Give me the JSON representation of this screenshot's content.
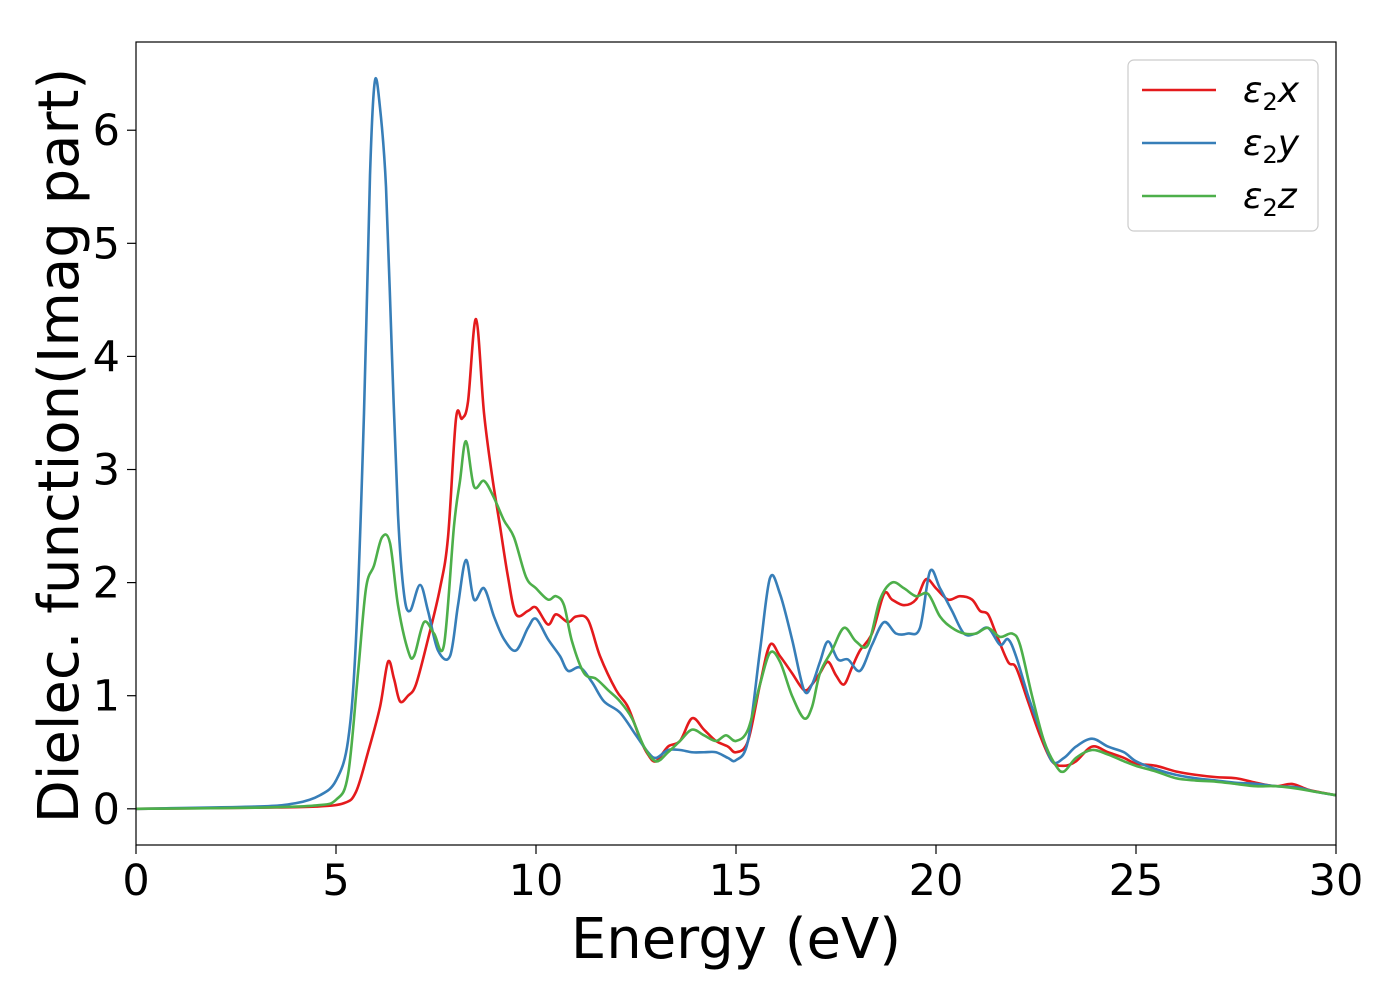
{
  "chart_data": {
    "type": "line",
    "xlabel": "Energy (eV)",
    "ylabel": "Dielec. function(Imag part)",
    "xlim": [
      0,
      30
    ],
    "ylim": [
      -0.32,
      6.78
    ],
    "xticks": [
      0,
      5,
      10,
      15,
      20,
      25,
      30
    ],
    "yticks": [
      0,
      1,
      2,
      3,
      4,
      5,
      6
    ],
    "xtick_labels": [
      "0",
      "5",
      "10",
      "15",
      "20",
      "25",
      "30"
    ],
    "ytick_labels": [
      "0",
      "1",
      "2",
      "3",
      "4",
      "5",
      "6"
    ],
    "grid": false,
    "legend_position": "top-right",
    "series": [
      {
        "name": "ε₂x",
        "legend_base": "ε",
        "legend_sub": "2",
        "legend_suffix": "x",
        "color": "#e41a1c",
        "points": [
          [
            0,
            0
          ],
          [
            3,
            0.01
          ],
          [
            4.5,
            0.02
          ],
          [
            5.2,
            0.05
          ],
          [
            5.5,
            0.15
          ],
          [
            5.8,
            0.5
          ],
          [
            6.1,
            0.9
          ],
          [
            6.3,
            1.3
          ],
          [
            6.45,
            1.15
          ],
          [
            6.6,
            0.95
          ],
          [
            6.8,
            1.0
          ],
          [
            7.0,
            1.1
          ],
          [
            7.3,
            1.5
          ],
          [
            7.6,
            1.95
          ],
          [
            7.8,
            2.4
          ],
          [
            8.0,
            3.45
          ],
          [
            8.15,
            3.45
          ],
          [
            8.3,
            3.6
          ],
          [
            8.5,
            4.33
          ],
          [
            8.7,
            3.5
          ],
          [
            8.9,
            2.95
          ],
          [
            9.1,
            2.5
          ],
          [
            9.3,
            2.05
          ],
          [
            9.5,
            1.72
          ],
          [
            9.8,
            1.75
          ],
          [
            10.0,
            1.78
          ],
          [
            10.3,
            1.63
          ],
          [
            10.5,
            1.72
          ],
          [
            10.8,
            1.65
          ],
          [
            11.0,
            1.7
          ],
          [
            11.3,
            1.67
          ],
          [
            11.6,
            1.35
          ],
          [
            12.0,
            1.05
          ],
          [
            12.3,
            0.9
          ],
          [
            12.6,
            0.62
          ],
          [
            12.8,
            0.48
          ],
          [
            13.0,
            0.42
          ],
          [
            13.3,
            0.55
          ],
          [
            13.6,
            0.6
          ],
          [
            13.9,
            0.8
          ],
          [
            14.2,
            0.7
          ],
          [
            14.5,
            0.6
          ],
          [
            14.8,
            0.55
          ],
          [
            15.0,
            0.5
          ],
          [
            15.3,
            0.6
          ],
          [
            15.6,
            1.1
          ],
          [
            15.85,
            1.45
          ],
          [
            16.1,
            1.35
          ],
          [
            16.4,
            1.2
          ],
          [
            16.7,
            1.05
          ],
          [
            16.9,
            1.1
          ],
          [
            17.1,
            1.2
          ],
          [
            17.3,
            1.3
          ],
          [
            17.5,
            1.18
          ],
          [
            17.7,
            1.1
          ],
          [
            17.9,
            1.25
          ],
          [
            18.1,
            1.4
          ],
          [
            18.4,
            1.55
          ],
          [
            18.7,
            1.9
          ],
          [
            18.9,
            1.85
          ],
          [
            19.2,
            1.8
          ],
          [
            19.5,
            1.85
          ],
          [
            19.75,
            2.03
          ],
          [
            20.0,
            1.95
          ],
          [
            20.3,
            1.85
          ],
          [
            20.6,
            1.88
          ],
          [
            20.9,
            1.85
          ],
          [
            21.1,
            1.75
          ],
          [
            21.3,
            1.72
          ],
          [
            21.5,
            1.55
          ],
          [
            21.8,
            1.3
          ],
          [
            22.0,
            1.25
          ],
          [
            22.3,
            0.95
          ],
          [
            22.6,
            0.65
          ],
          [
            22.9,
            0.42
          ],
          [
            23.2,
            0.38
          ],
          [
            23.5,
            0.42
          ],
          [
            23.9,
            0.55
          ],
          [
            24.3,
            0.5
          ],
          [
            24.7,
            0.45
          ],
          [
            25.0,
            0.4
          ],
          [
            25.5,
            0.38
          ],
          [
            26.0,
            0.33
          ],
          [
            26.5,
            0.3
          ],
          [
            27.0,
            0.28
          ],
          [
            27.5,
            0.27
          ],
          [
            28.0,
            0.23
          ],
          [
            28.5,
            0.2
          ],
          [
            28.9,
            0.22
          ],
          [
            29.3,
            0.17
          ],
          [
            29.7,
            0.14
          ],
          [
            30.0,
            0.12
          ]
        ]
      },
      {
        "name": "ε₂y",
        "legend_base": "ε",
        "legend_sub": "2",
        "legend_suffix": "y",
        "color": "#377eb8",
        "points": [
          [
            0,
            0
          ],
          [
            3,
            0.02
          ],
          [
            4.0,
            0.05
          ],
          [
            4.6,
            0.12
          ],
          [
            5.0,
            0.25
          ],
          [
            5.3,
            0.6
          ],
          [
            5.5,
            1.5
          ],
          [
            5.7,
            3.5
          ],
          [
            5.85,
            5.6
          ],
          [
            5.97,
            6.43
          ],
          [
            6.1,
            6.2
          ],
          [
            6.25,
            5.5
          ],
          [
            6.4,
            4.0
          ],
          [
            6.55,
            2.6
          ],
          [
            6.7,
            1.9
          ],
          [
            6.85,
            1.75
          ],
          [
            7.1,
            1.98
          ],
          [
            7.3,
            1.75
          ],
          [
            7.55,
            1.4
          ],
          [
            7.85,
            1.35
          ],
          [
            8.05,
            1.8
          ],
          [
            8.25,
            2.2
          ],
          [
            8.45,
            1.85
          ],
          [
            8.7,
            1.95
          ],
          [
            8.95,
            1.7
          ],
          [
            9.2,
            1.5
          ],
          [
            9.5,
            1.4
          ],
          [
            9.8,
            1.6
          ],
          [
            10.0,
            1.68
          ],
          [
            10.3,
            1.5
          ],
          [
            10.6,
            1.35
          ],
          [
            10.8,
            1.22
          ],
          [
            11.1,
            1.25
          ],
          [
            11.4,
            1.12
          ],
          [
            11.7,
            0.95
          ],
          [
            12.1,
            0.85
          ],
          [
            12.5,
            0.65
          ],
          [
            12.8,
            0.5
          ],
          [
            13.0,
            0.45
          ],
          [
            13.3,
            0.52
          ],
          [
            13.6,
            0.52
          ],
          [
            13.9,
            0.5
          ],
          [
            14.2,
            0.5
          ],
          [
            14.5,
            0.5
          ],
          [
            14.8,
            0.45
          ],
          [
            15.0,
            0.43
          ],
          [
            15.3,
            0.6
          ],
          [
            15.6,
            1.4
          ],
          [
            15.85,
            2.04
          ],
          [
            16.1,
            1.9
          ],
          [
            16.4,
            1.5
          ],
          [
            16.7,
            1.05
          ],
          [
            16.9,
            1.1
          ],
          [
            17.1,
            1.3
          ],
          [
            17.3,
            1.48
          ],
          [
            17.55,
            1.32
          ],
          [
            17.8,
            1.32
          ],
          [
            18.1,
            1.22
          ],
          [
            18.4,
            1.45
          ],
          [
            18.7,
            1.65
          ],
          [
            19.0,
            1.55
          ],
          [
            19.3,
            1.55
          ],
          [
            19.6,
            1.6
          ],
          [
            19.85,
            2.1
          ],
          [
            20.1,
            1.95
          ],
          [
            20.4,
            1.75
          ],
          [
            20.7,
            1.55
          ],
          [
            21.0,
            1.55
          ],
          [
            21.3,
            1.6
          ],
          [
            21.6,
            1.45
          ],
          [
            21.8,
            1.5
          ],
          [
            22.0,
            1.35
          ],
          [
            22.3,
            1.0
          ],
          [
            22.6,
            0.7
          ],
          [
            22.9,
            0.42
          ],
          [
            23.2,
            0.45
          ],
          [
            23.5,
            0.55
          ],
          [
            23.9,
            0.62
          ],
          [
            24.3,
            0.55
          ],
          [
            24.7,
            0.5
          ],
          [
            25.0,
            0.42
          ],
          [
            25.5,
            0.35
          ],
          [
            26.0,
            0.3
          ],
          [
            26.5,
            0.27
          ],
          [
            27.0,
            0.25
          ],
          [
            27.5,
            0.23
          ],
          [
            28.0,
            0.22
          ],
          [
            28.5,
            0.2
          ],
          [
            29.0,
            0.19
          ],
          [
            29.5,
            0.15
          ],
          [
            30.0,
            0.12
          ]
        ]
      },
      {
        "name": "ε₂z",
        "legend_base": "ε",
        "legend_sub": "2",
        "legend_suffix": "z",
        "color": "#4daf4a",
        "points": [
          [
            0,
            0
          ],
          [
            3,
            0.01
          ],
          [
            4.5,
            0.03
          ],
          [
            5.0,
            0.08
          ],
          [
            5.3,
            0.3
          ],
          [
            5.55,
            1.2
          ],
          [
            5.75,
            1.95
          ],
          [
            5.95,
            2.15
          ],
          [
            6.15,
            2.4
          ],
          [
            6.35,
            2.35
          ],
          [
            6.55,
            1.8
          ],
          [
            6.8,
            1.4
          ],
          [
            6.95,
            1.35
          ],
          [
            7.2,
            1.65
          ],
          [
            7.45,
            1.55
          ],
          [
            7.7,
            1.45
          ],
          [
            7.95,
            2.5
          ],
          [
            8.1,
            2.9
          ],
          [
            8.25,
            3.25
          ],
          [
            8.45,
            2.85
          ],
          [
            8.7,
            2.9
          ],
          [
            8.95,
            2.75
          ],
          [
            9.2,
            2.55
          ],
          [
            9.45,
            2.4
          ],
          [
            9.75,
            2.05
          ],
          [
            10.0,
            1.95
          ],
          [
            10.3,
            1.85
          ],
          [
            10.5,
            1.88
          ],
          [
            10.7,
            1.8
          ],
          [
            10.9,
            1.48
          ],
          [
            11.2,
            1.2
          ],
          [
            11.5,
            1.15
          ],
          [
            11.8,
            1.05
          ],
          [
            12.1,
            0.95
          ],
          [
            12.4,
            0.8
          ],
          [
            12.7,
            0.55
          ],
          [
            13.0,
            0.42
          ],
          [
            13.3,
            0.5
          ],
          [
            13.6,
            0.6
          ],
          [
            13.9,
            0.7
          ],
          [
            14.2,
            0.65
          ],
          [
            14.5,
            0.6
          ],
          [
            14.75,
            0.65
          ],
          [
            15.0,
            0.6
          ],
          [
            15.3,
            0.7
          ],
          [
            15.6,
            1.1
          ],
          [
            15.85,
            1.38
          ],
          [
            16.1,
            1.3
          ],
          [
            16.4,
            1.0
          ],
          [
            16.7,
            0.8
          ],
          [
            16.9,
            0.9
          ],
          [
            17.1,
            1.2
          ],
          [
            17.4,
            1.4
          ],
          [
            17.7,
            1.6
          ],
          [
            18.0,
            1.48
          ],
          [
            18.3,
            1.45
          ],
          [
            18.6,
            1.85
          ],
          [
            18.9,
            2.0
          ],
          [
            19.2,
            1.95
          ],
          [
            19.5,
            1.88
          ],
          [
            19.8,
            1.9
          ],
          [
            20.1,
            1.7
          ],
          [
            20.4,
            1.6
          ],
          [
            20.7,
            1.55
          ],
          [
            21.0,
            1.55
          ],
          [
            21.3,
            1.6
          ],
          [
            21.6,
            1.52
          ],
          [
            21.9,
            1.55
          ],
          [
            22.1,
            1.45
          ],
          [
            22.4,
            1.0
          ],
          [
            22.7,
            0.6
          ],
          [
            23.0,
            0.38
          ],
          [
            23.2,
            0.33
          ],
          [
            23.5,
            0.45
          ],
          [
            23.9,
            0.52
          ],
          [
            24.3,
            0.48
          ],
          [
            24.7,
            0.42
          ],
          [
            25.0,
            0.38
          ],
          [
            25.5,
            0.33
          ],
          [
            26.0,
            0.27
          ],
          [
            26.5,
            0.25
          ],
          [
            27.0,
            0.24
          ],
          [
            27.5,
            0.22
          ],
          [
            28.0,
            0.2
          ],
          [
            28.5,
            0.2
          ],
          [
            29.0,
            0.18
          ],
          [
            29.5,
            0.15
          ],
          [
            30.0,
            0.12
          ]
        ]
      }
    ]
  }
}
